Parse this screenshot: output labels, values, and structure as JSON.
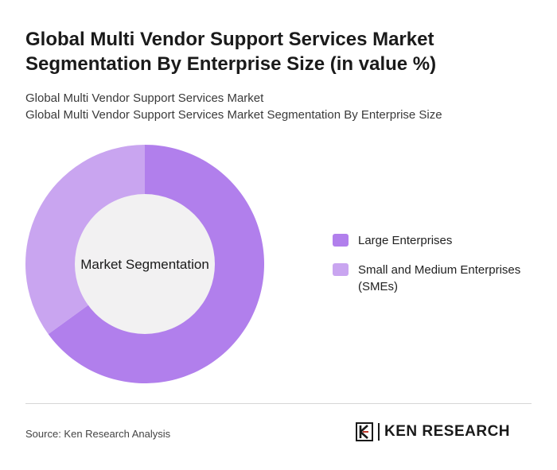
{
  "header": {
    "title": "Global Multi Vendor Support Services Market Segmentation By Enterprise Size (in value %)",
    "subtitle_line1": "Global Multi Vendor Support Services Market",
    "subtitle_line2": "Global Multi Vendor Support Services Market Segmentation By Enterprise Size"
  },
  "chart_data": {
    "type": "pie",
    "variant": "donut",
    "center_label": "Market Segmentation",
    "categories": [
      "Large Enterprises",
      "Small and Medium Enterprises (SMEs)"
    ],
    "values": [
      65,
      35
    ],
    "colors": [
      "#b17fec",
      "#c9a5f0"
    ],
    "hole_color": "#f2f1f2",
    "legend_placement": "right"
  },
  "legend": {
    "items": [
      {
        "label": "Large Enterprises",
        "color": "#b17fec"
      },
      {
        "label": "Small and Medium Enterprises (SMEs)",
        "color": "#c9a5f0"
      }
    ]
  },
  "footer": {
    "source": "Source: Ken Research Analysis",
    "logo_text": "KEN RESEARCH"
  }
}
